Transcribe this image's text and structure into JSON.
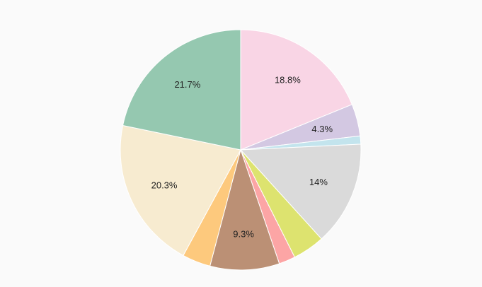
{
  "chart_data": {
    "type": "pie",
    "start_angle_deg": 0,
    "direction": "clockwise",
    "legend": "none",
    "slices": [
      {
        "value": 18.8,
        "label": "18.8%",
        "color": "#f9d5e5"
      },
      {
        "value": 4.3,
        "label": "4.3%",
        "color": "#d3c8e2"
      },
      {
        "value": 1.1,
        "label": "",
        "color": "#c3e4ed"
      },
      {
        "value": 14.0,
        "label": "14%",
        "color": "#dadada"
      },
      {
        "value": 4.3,
        "label": "",
        "color": "#dde36f"
      },
      {
        "value": 2.2,
        "label": "",
        "color": "#fca5a5"
      },
      {
        "value": 9.3,
        "label": "9.3%",
        "color": "#bb9075"
      },
      {
        "value": 3.8,
        "label": "",
        "color": "#fdc97d"
      },
      {
        "value": 20.3,
        "label": "20.3%",
        "color": "#f7ebd0"
      },
      {
        "value": 21.7,
        "label": "21.7%",
        "color": "#95c8b0"
      }
    ]
  }
}
